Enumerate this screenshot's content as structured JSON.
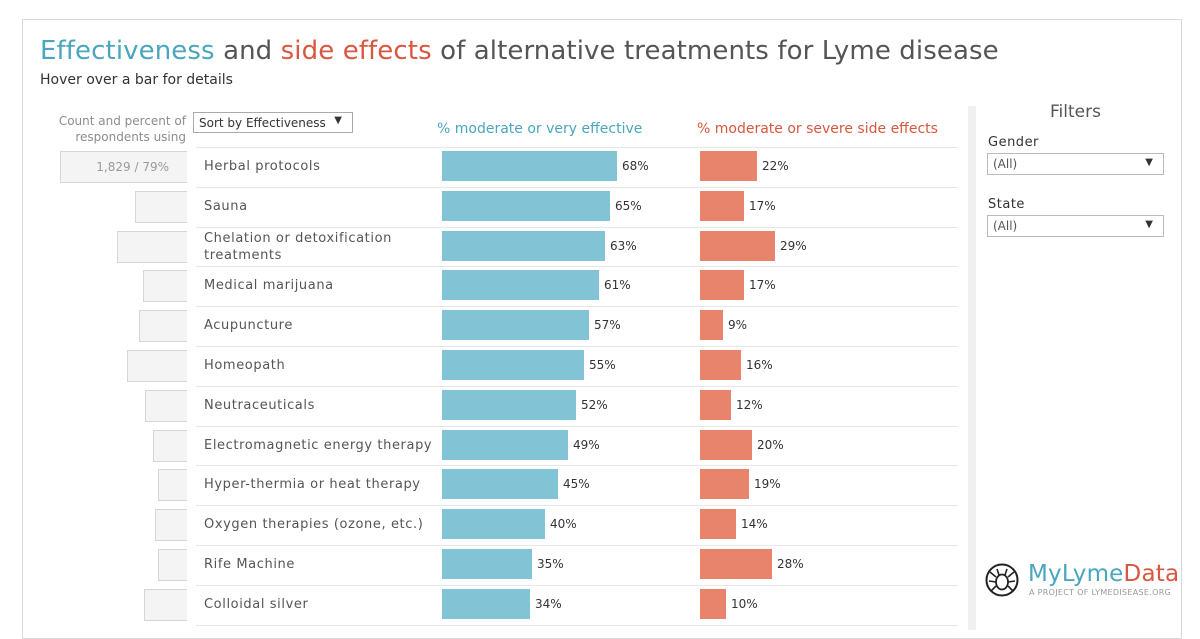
{
  "title": {
    "part1": "Effectiveness",
    "part2": " and ",
    "part3": "side effects",
    "part4": " of alternative treatments for Lyme disease"
  },
  "subtitle": "Hover over a bar for details",
  "count_header": "Count and percent of respondents using",
  "sort_control": {
    "label": "Sort by Effectiveness"
  },
  "filters": {
    "title": "Filters",
    "gender": {
      "label": "Gender",
      "value": "(All)"
    },
    "state": {
      "label": "State",
      "value": "(All)"
    }
  },
  "logo": {
    "name_part1": "MyLyme",
    "name_part2": "Data",
    "tagline": "A PROJECT OF LYMEDISEASE.ORG"
  },
  "colors": {
    "effective": "#82c4d6",
    "side_effects": "#e8836c",
    "title_effective": "#4aa6bd",
    "title_side": "#d9573f"
  },
  "chart_data": {
    "type": "bar",
    "orientation": "horizontal",
    "categories": [
      "Herbal protocols",
      "Sauna",
      "Chelation or detoxification treatments",
      "Medical marijuana",
      "Acupuncture",
      "Homeopath",
      "Neutraceuticals",
      "Electromagnetic energy therapy",
      "Hyper-thermia or heat therapy",
      "Oxygen therapies (ozone, etc.)",
      "Rife Machine",
      "Colloidal silver"
    ],
    "series": [
      {
        "name": "% moderate or very effective",
        "values": [
          68,
          65,
          63,
          61,
          57,
          55,
          52,
          49,
          45,
          40,
          35,
          34
        ],
        "labels": [
          "68%",
          "65%",
          "63%",
          "61%",
          "57%",
          "55%",
          "52%",
          "49%",
          "45%",
          "40%",
          "35%",
          "34%"
        ]
      },
      {
        "name": "% moderate or severe side effects",
        "values": [
          22,
          17,
          29,
          17,
          9,
          16,
          12,
          20,
          19,
          14,
          28,
          10
        ],
        "labels": [
          "22%",
          "17%",
          "29%",
          "17%",
          "9%",
          "16%",
          "12%",
          "20%",
          "19%",
          "14%",
          "28%",
          "10%"
        ]
      }
    ],
    "counts": [
      "1,829 / 79%",
      "",
      "",
      "",
      "",
      "",
      "",
      "",
      "",
      "",
      "",
      ""
    ],
    "count_box_relative_width": [
      1.0,
      0.41,
      0.55,
      0.35,
      0.38,
      0.47,
      0.33,
      0.27,
      0.23,
      0.25,
      0.23,
      0.34
    ],
    "xlim": [
      0,
      100
    ]
  }
}
